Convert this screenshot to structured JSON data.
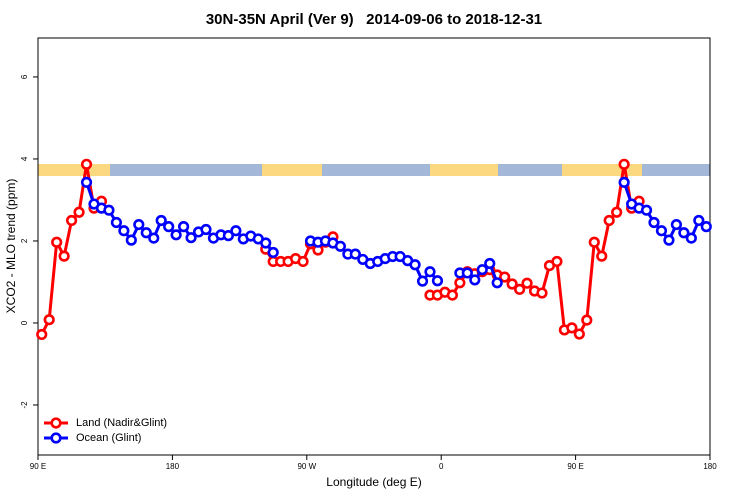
{
  "chart_data": {
    "type": "line",
    "title": "30N-35N April (Ver 9)   2014-09-06 to 2018-12-31",
    "xlabel": "Longitude (deg E)",
    "ylabel": "XCO2 - MLO trend (ppm)",
    "xlim": [
      90,
      540
    ],
    "xticks": [
      {
        "value": 90,
        "label": "90 E"
      },
      180,
      {
        "value": 270,
        "label": "90 W"
      },
      {
        "value": 360,
        "label": "0"
      },
      {
        "value": 450,
        "label": "90 E"
      },
      {
        "value": 540,
        "label": "180"
      }
    ],
    "ylim": [
      -3.22,
      6.95
    ],
    "yticks": [
      -2,
      0,
      2,
      4,
      6
    ],
    "legend": "bottom-left",
    "series": [
      {
        "name": "Land (Nadir&Glint)",
        "color": "#ff0000",
        "x": [
          92.5,
          97.5,
          102.5,
          107.5,
          112.5,
          117.5,
          122.5,
          127.5,
          132.5,
          137.5,
          242.5,
          247.5,
          252.5,
          257.5,
          262.5,
          267.5,
          272.5,
          277.5,
          282.5,
          287.5,
          292.5,
          352.5,
          357.5,
          362.5,
          367.5,
          372.5,
          377.5,
          382.5,
          387.5,
          392.5,
          397.5,
          402.5,
          407.5,
          412.5,
          417.5,
          422.5,
          427.5,
          432.5,
          437.5,
          442.5,
          447.5,
          452.5,
          457.5,
          462.5,
          467.5,
          472.5,
          477.5,
          482.5,
          487.5,
          492.5
        ],
        "values": [
          -0.28,
          0.08,
          1.97,
          1.63,
          2.5,
          2.7,
          3.87,
          2.8,
          2.97,
          null,
          1.8,
          1.5,
          1.5,
          1.5,
          1.57,
          1.5,
          1.93,
          1.78,
          1.97,
          2.1,
          null,
          0.68,
          0.68,
          0.75,
          0.68,
          0.98,
          1.25,
          1.2,
          1.25,
          1.3,
          1.17,
          1.12,
          0.95,
          0.82,
          0.97,
          0.78,
          0.73,
          1.4,
          1.5,
          -0.17,
          -0.12,
          -0.27,
          0.07,
          1.97,
          1.63,
          2.5,
          2.7,
          3.87,
          2.8,
          2.97
        ]
      },
      {
        "name": "Ocean (Glint)",
        "color": "#0000ff",
        "x": [
          122.5,
          127.5,
          132.5,
          137.5,
          142.5,
          147.5,
          152.5,
          157.5,
          162.5,
          167.5,
          172.5,
          177.5,
          182.5,
          187.5,
          192.5,
          197.5,
          202.5,
          207.5,
          212.5,
          217.5,
          222.5,
          227.5,
          232.5,
          237.5,
          242.5,
          247.5,
          252.5,
          272.5,
          277.5,
          282.5,
          287.5,
          292.5,
          297.5,
          302.5,
          307.5,
          312.5,
          317.5,
          322.5,
          327.5,
          332.5,
          337.5,
          342.5,
          347.5,
          352.5,
          357.5,
          362.5,
          372.5,
          377.5,
          382.5,
          387.5,
          392.5,
          397.5,
          402.5,
          482.5,
          487.5,
          492.5,
          497.5,
          502.5,
          507.5,
          512.5,
          517.5,
          522.5,
          527.5,
          532.5,
          537.5
        ],
        "values": [
          3.43,
          2.9,
          2.8,
          2.75,
          2.45,
          2.25,
          2.02,
          2.4,
          2.2,
          2.07,
          2.5,
          2.35,
          2.15,
          2.35,
          2.08,
          2.22,
          2.28,
          2.07,
          2.15,
          2.13,
          2.25,
          2.05,
          2.12,
          2.05,
          1.95,
          1.72,
          null,
          2.0,
          1.97,
          2.0,
          1.95,
          1.87,
          1.68,
          1.68,
          1.55,
          1.45,
          1.5,
          1.57,
          1.62,
          1.62,
          1.52,
          1.42,
          1.02,
          1.25,
          1.03,
          null,
          1.22,
          1.22,
          1.05,
          1.3,
          1.45,
          0.98,
          null,
          3.43,
          2.9,
          2.8,
          2.75,
          2.45,
          2.25,
          2.02,
          2.4,
          2.2,
          2.07,
          2.5,
          2.35
        ]
      }
    ]
  }
}
